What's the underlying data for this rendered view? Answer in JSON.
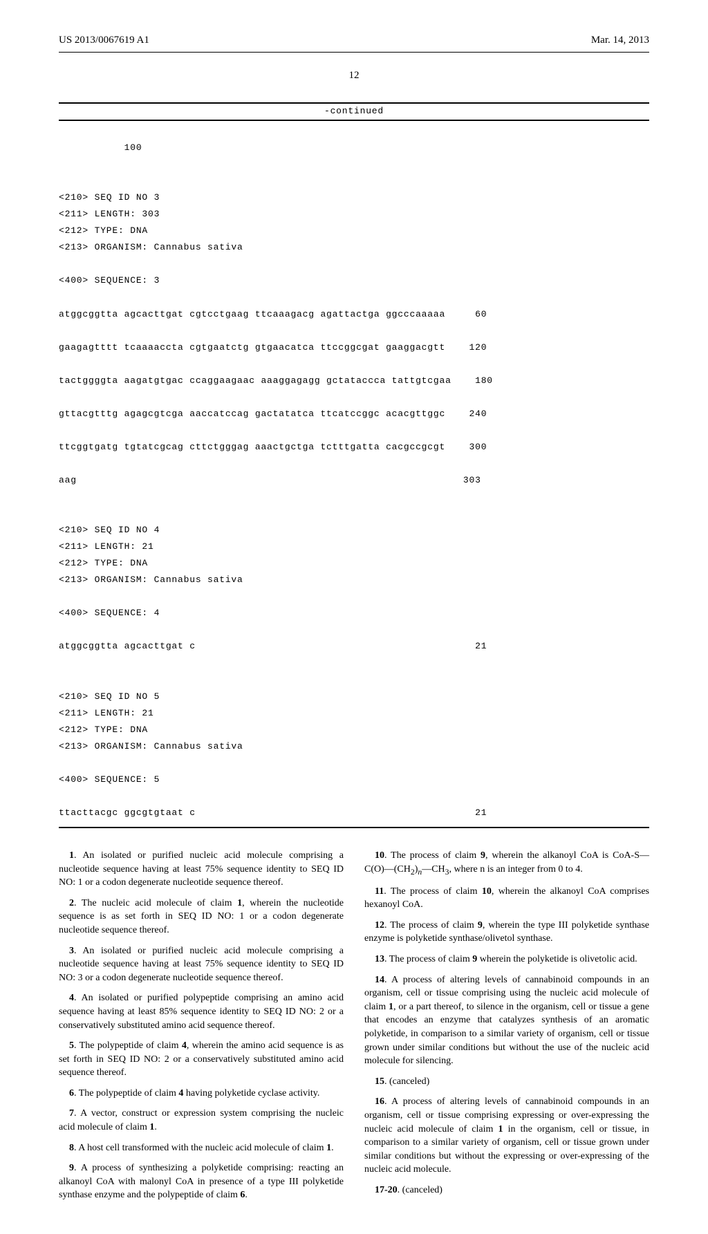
{
  "header": {
    "left": "US 2013/0067619 A1",
    "right": "Mar. 14, 2013"
  },
  "page_number": "12",
  "continued_label": "-continued",
  "sequence_block": {
    "line_100": "           100",
    "seq3_header": "<210> SEQ ID NO 3\n<211> LENGTH: 303\n<212> TYPE: DNA\n<213> ORGANISM: Cannabus sativa",
    "seq3_label": "<400> SEQUENCE: 3",
    "seq3_line1": "atggcggtta agcacttgat cgtcctgaag ttcaaagacg agattactga ggcccaaaaa     60",
    "seq3_line2": "gaagagtttt tcaaaaccta cgtgaatctg gtgaacatca ttccggcgat gaaggacgtt    120",
    "seq3_line3": "tactggggta aagatgtgac ccaggaagaac aaaggagagg gctataccca tattgtcgaa    180",
    "seq3_line4": "gttacgtttg agagcgtcga aaccatccag gactatatca ttcatccggc acacgttggc    240",
    "seq3_line5": "ttcggtgatg tgtatcgcag cttctgggag aaactgctga tctttgatta cacgccgcgt    300",
    "seq3_line6": "aag                                                                 303",
    "seq4_header": "<210> SEQ ID NO 4\n<211> LENGTH: 21\n<212> TYPE: DNA\n<213> ORGANISM: Cannabus sativa",
    "seq4_label": "<400> SEQUENCE: 4",
    "seq4_line1": "atggcggtta agcacttgat c                                               21",
    "seq5_header": "<210> SEQ ID NO 5\n<211> LENGTH: 21\n<212> TYPE: DNA\n<213> ORGANISM: Cannabus sativa",
    "seq5_label": "<400> SEQUENCE: 5",
    "seq5_line1": "ttacttacgc ggcgtgtaat c                                               21"
  },
  "claims": {
    "c1": ". An isolated or purified nucleic acid molecule comprising a nucleotide sequence having at least 75% sequence identity to SEQ ID NO: 1 or a codon degenerate nucleotide sequence thereof.",
    "c2_pre": ". The nucleic acid molecule of claim ",
    "c2_ref": "1",
    "c2_post": ", wherein the nucleotide sequence is as set forth in SEQ ID NO: 1 or a codon degenerate nucleotide sequence thereof.",
    "c3": ". An isolated or purified nucleic acid molecule comprising a nucleotide sequence having at least 75% sequence identity to SEQ ID NO: 3 or a codon degenerate nucleotide sequence thereof.",
    "c4": ". An isolated or purified polypeptide comprising an amino acid sequence having at least 85% sequence identity to SEQ ID NO: 2 or a conservatively substituted amino acid sequence thereof.",
    "c5_pre": ". The polypeptide of claim ",
    "c5_ref": "4",
    "c5_post": ", wherein the amino acid sequence is as set forth in SEQ ID NO: 2 or a conservatively substituted amino acid sequence thereof.",
    "c6_pre": ". The polypeptide of claim ",
    "c6_ref": "4",
    "c6_post": " having polyketide cyclase activity.",
    "c7_pre": ". A vector, construct or expression system comprising the nucleic acid molecule of claim ",
    "c7_ref": "1",
    "c7_post": ".",
    "c8_pre": ". A host cell transformed with the nucleic acid molecule of claim ",
    "c8_ref": "1",
    "c8_post": ".",
    "c9_pre": ". A process of synthesizing a polyketide comprising: reacting an alkanoyl CoA with malonyl CoA in presence of a type III polyketide synthase enzyme and the polypeptide of claim ",
    "c9_ref": "6",
    "c9_post": ".",
    "c10_pre": ". The process of claim ",
    "c10_ref": "9",
    "c10_post_a": ", wherein the alkanoyl CoA is CoA-S—C(O)—(CH",
    "c10_sub1": "2",
    "c10_post_b": ")",
    "c10_sub2": "n",
    "c10_post_c": "—CH",
    "c10_sub3": "3",
    "c10_post_d": ", where n is an integer from 0 to 4.",
    "c11_pre": ". The process of claim ",
    "c11_ref": "10",
    "c11_post": ", wherein the alkanoyl CoA comprises hexanoyl CoA.",
    "c12_pre": ". The process of claim ",
    "c12_ref": "9",
    "c12_post": ", wherein the type III polyketide synthase enzyme is polyketide synthase/olivetol synthase.",
    "c13_pre": ". The process of claim ",
    "c13_ref": "9",
    "c13_post": " wherein the polyketide is olivetolic acid.",
    "c14_pre": ". A process of altering levels of cannabinoid compounds in an organism, cell or tissue comprising using the nucleic acid molecule of claim ",
    "c14_ref": "1",
    "c14_post": ", or a part thereof, to silence in the organism, cell or tissue a gene that encodes an enzyme that catalyzes synthesis of an aromatic polyketide, in comparison to a similar variety of organism, cell or tissue grown under similar conditions but without the use of the nucleic acid molecule for silencing.",
    "c15": ". (canceled)",
    "c16_pre": ". A process of altering levels of cannabinoid compounds in an organism, cell or tissue comprising expressing or over-expressing the nucleic acid molecule of claim ",
    "c16_ref": "1",
    "c16_post": " in the organism, cell or tissue, in comparison to a similar variety of organism, cell or tissue grown under similar conditions but without the expressing or over-expressing of the nucleic acid molecule.",
    "c17": ". (canceled)",
    "nums": {
      "n1": "1",
      "n2": "2",
      "n3": "3",
      "n4": "4",
      "n5": "5",
      "n6": "6",
      "n7": "7",
      "n8": "8",
      "n9": "9",
      "n10": "10",
      "n11": "11",
      "n12": "12",
      "n13": "13",
      "n14": "14",
      "n15": "15",
      "n16": "16",
      "n17": "17-20"
    }
  }
}
